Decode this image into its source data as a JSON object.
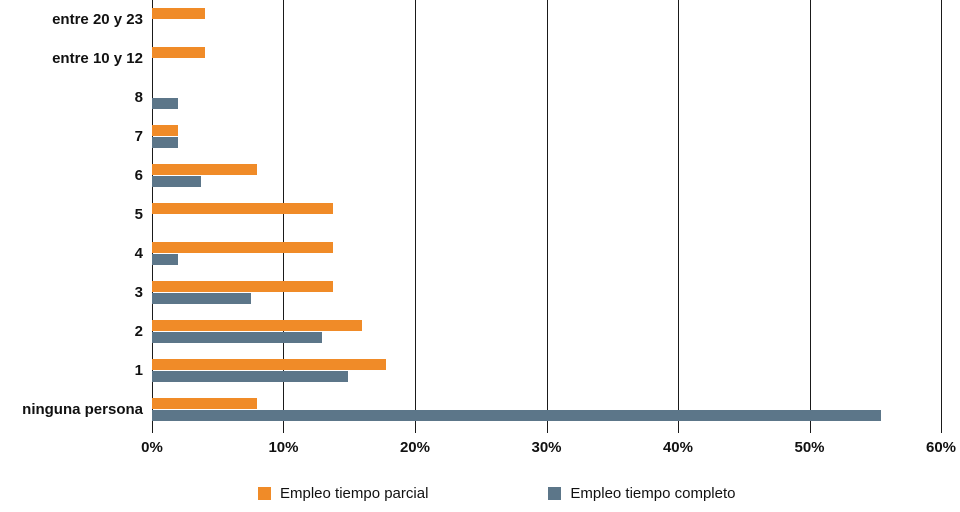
{
  "chart_data": {
    "type": "bar",
    "orientation": "horizontal",
    "title": "",
    "categories": [
      "entre 20 y 23",
      "entre 10 y 12",
      "8",
      "7",
      "6",
      "5",
      "4",
      "3",
      "2",
      "1",
      "ninguna persona"
    ],
    "series": [
      {
        "name": "Empleo tiempo parcial",
        "color": "#F08B28",
        "values": [
          4,
          4,
          0,
          2,
          8,
          13.8,
          13.8,
          13.8,
          16,
          17.8,
          8
        ]
      },
      {
        "name": "Empleo tiempo completo",
        "color": "#5C7689",
        "values": [
          0,
          0,
          2,
          2,
          3.7,
          0,
          2,
          7.5,
          12.9,
          14.9,
          55.4
        ]
      }
    ],
    "xlim": [
      0,
      60
    ],
    "x_ticks": [
      "0%",
      "10%",
      "20%",
      "30%",
      "40%",
      "50%",
      "60%"
    ],
    "grid": "vertical",
    "gridline_color": "#1a1a1a",
    "legend_position": "bottom"
  }
}
